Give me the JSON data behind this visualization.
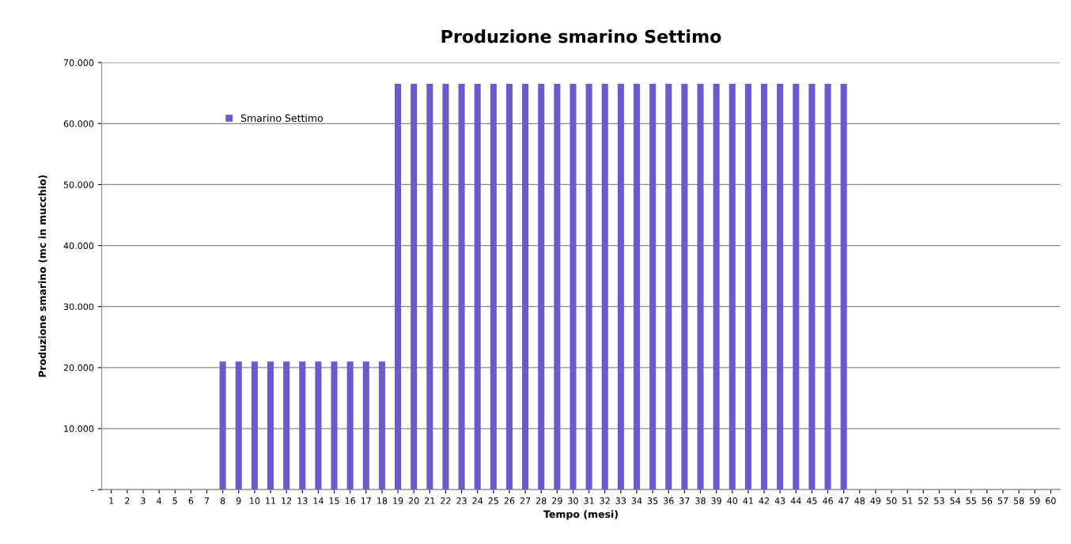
{
  "chart_data": {
    "type": "bar",
    "title": "Produzione smarino Settimo",
    "xlabel": "Tempo (mesi)",
    "ylabel": "Produzione smarino (mc in mucchio)",
    "categories": [
      "1",
      "2",
      "3",
      "4",
      "5",
      "6",
      "7",
      "8",
      "9",
      "10",
      "11",
      "12",
      "13",
      "14",
      "15",
      "16",
      "17",
      "18",
      "19",
      "20",
      "21",
      "22",
      "23",
      "24",
      "25",
      "26",
      "27",
      "28",
      "29",
      "30",
      "31",
      "32",
      "33",
      "34",
      "35",
      "36",
      "37",
      "38",
      "39",
      "40",
      "41",
      "42",
      "43",
      "44",
      "45",
      "46",
      "47",
      "48",
      "49",
      "50",
      "51",
      "52",
      "53",
      "54",
      "55",
      "56",
      "57",
      "58",
      "59",
      "60"
    ],
    "series": [
      {
        "name": "Smarino Settimo",
        "color": "#6a5acd",
        "values": [
          0,
          0,
          0,
          0,
          0,
          0,
          0,
          21000,
          21000,
          21000,
          21000,
          21000,
          21000,
          21000,
          21000,
          21000,
          21000,
          21000,
          66500,
          66500,
          66500,
          66500,
          66500,
          66500,
          66500,
          66500,
          66500,
          66500,
          66500,
          66500,
          66500,
          66500,
          66500,
          66500,
          66500,
          66500,
          66500,
          66500,
          66500,
          66500,
          66500,
          66500,
          66500,
          66500,
          66500,
          66500,
          66500,
          0,
          0,
          0,
          0,
          0,
          0,
          0,
          0,
          0,
          0,
          0,
          0,
          0
        ]
      }
    ],
    "ylim": [
      0,
      70000
    ],
    "yticks": [
      {
        "value": 0,
        "label": "-"
      },
      {
        "value": 10000,
        "label": "10.000"
      },
      {
        "value": 20000,
        "label": "20.000"
      },
      {
        "value": 30000,
        "label": "30.000"
      },
      {
        "value": 40000,
        "label": "40.000"
      },
      {
        "value": 50000,
        "label": "50.000"
      },
      {
        "value": 60000,
        "label": "60.000"
      },
      {
        "value": 70000,
        "label": "70.000"
      }
    ],
    "grid": "y",
    "legend": "top left"
  }
}
